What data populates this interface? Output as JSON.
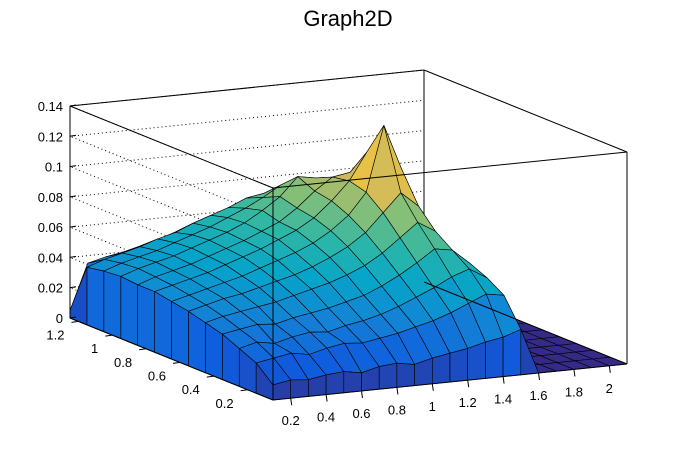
{
  "chart_data": {
    "type": "surface",
    "title": "Graph2D",
    "xlabel": "",
    "ylabel": "",
    "zlabel": "",
    "xlim": [
      0.1,
      2.1
    ],
    "ylim": [
      0.05,
      1.25
    ],
    "zlim": [
      0,
      0.14
    ],
    "x_ticks": [
      "0.2",
      "0.4",
      "0.6",
      "0.8",
      "1",
      "1.2",
      "1.4",
      "1.6",
      "1.8",
      "2"
    ],
    "y_ticks": [
      "0.2",
      "0.4",
      "0.6",
      "0.8",
      "1",
      "1.2"
    ],
    "z_ticks": [
      "0",
      "0.02",
      "0.04",
      "0.06",
      "0.08",
      "0.1",
      "0.12",
      "0.14"
    ],
    "grid": true,
    "palette": [
      "#352a87",
      "#0f5cdd",
      "#1481d6",
      "#06a4ca",
      "#2eb7a4",
      "#87bf77",
      "#d1bb59",
      "#fec832",
      "#f9fb0e"
    ],
    "surface_x": [
      0.1,
      0.2,
      0.3,
      0.4,
      0.5,
      0.6,
      0.7,
      0.8,
      0.9,
      1.0,
      1.1,
      1.2,
      1.3,
      1.4,
      1.5,
      1.6,
      1.7,
      1.8,
      1.9,
      2.0,
      2.1
    ],
    "surface_y": [
      0.05,
      0.15,
      0.25,
      0.35,
      0.45,
      0.55,
      0.65,
      0.75,
      0.85,
      0.95,
      1.05,
      1.15,
      1.25
    ],
    "surface_z": [
      [
        0.01,
        0.012,
        0.011,
        0.013,
        0.014,
        0.012,
        0.015,
        0.016,
        0.014,
        0.017,
        0.019,
        0.021,
        0.024,
        0.026,
        0.03,
        0.0,
        0.0,
        0.0,
        0.0,
        0.0,
        0.0
      ],
      [
        0.02,
        0.022,
        0.024,
        0.022,
        0.025,
        0.027,
        0.026,
        0.028,
        0.03,
        0.033,
        0.036,
        0.04,
        0.045,
        0.05,
        0.048,
        0.0,
        0.0,
        0.0,
        0.0,
        0.0,
        0.0
      ],
      [
        0.025,
        0.028,
        0.026,
        0.029,
        0.031,
        0.03,
        0.033,
        0.035,
        0.038,
        0.042,
        0.047,
        0.052,
        0.058,
        0.062,
        0.055,
        0.0,
        0.0,
        0.0,
        0.0,
        0.0,
        0.0
      ],
      [
        0.03,
        0.032,
        0.034,
        0.033,
        0.036,
        0.038,
        0.04,
        0.043,
        0.046,
        0.051,
        0.057,
        0.064,
        0.072,
        0.07,
        0.06,
        0.0,
        0.0,
        0.0,
        0.0,
        0.0,
        0.0
      ],
      [
        0.033,
        0.036,
        0.038,
        0.04,
        0.042,
        0.045,
        0.048,
        0.051,
        0.055,
        0.06,
        0.067,
        0.076,
        0.085,
        0.078,
        0.062,
        0.0,
        0.0,
        0.0,
        0.0,
        0.0,
        0.0
      ],
      [
        0.036,
        0.039,
        0.042,
        0.044,
        0.047,
        0.05,
        0.053,
        0.057,
        0.062,
        0.068,
        0.076,
        0.088,
        0.1,
        0.09,
        0.065,
        0.0,
        0.0,
        0.0,
        0.0,
        0.0,
        0.0
      ],
      [
        0.038,
        0.041,
        0.044,
        0.047,
        0.05,
        0.054,
        0.058,
        0.062,
        0.067,
        0.074,
        0.083,
        0.097,
        0.14,
        0.11,
        0.062,
        0.0,
        0.0,
        0.0,
        0.0,
        0.0,
        0.0
      ],
      [
        0.04,
        0.043,
        0.046,
        0.049,
        0.053,
        0.057,
        0.061,
        0.066,
        0.071,
        0.078,
        0.088,
        0.1,
        0.118,
        0.095,
        0.058,
        0.0,
        0.0,
        0.0,
        0.0,
        0.0,
        0.0
      ],
      [
        0.04,
        0.044,
        0.047,
        0.05,
        0.054,
        0.058,
        0.062,
        0.067,
        0.072,
        0.08,
        0.09,
        0.098,
        0.1,
        0.085,
        0.052,
        0.0,
        0.0,
        0.0,
        0.0,
        0.0,
        0.0
      ],
      [
        0.041,
        0.045,
        0.048,
        0.051,
        0.055,
        0.059,
        0.063,
        0.068,
        0.075,
        0.083,
        0.095,
        0.093,
        0.088,
        0.072,
        0.045,
        0.0,
        0.0,
        0.0,
        0.0,
        0.0,
        0.0
      ],
      [
        0.04,
        0.044,
        0.047,
        0.05,
        0.054,
        0.058,
        0.062,
        0.067,
        0.072,
        0.078,
        0.085,
        0.082,
        0.075,
        0.06,
        0.038,
        0.0,
        0.0,
        0.0,
        0.0,
        0.0,
        0.0
      ],
      [
        0.038,
        0.042,
        0.045,
        0.048,
        0.052,
        0.055,
        0.06,
        0.064,
        0.068,
        0.073,
        0.075,
        0.07,
        0.062,
        0.05,
        0.03,
        0.0,
        0.0,
        0.0,
        0.0,
        0.0,
        0.0
      ],
      [
        0.005,
        0.035,
        0.038,
        0.04,
        0.043,
        0.046,
        0.05,
        0.053,
        0.056,
        0.06,
        0.062,
        0.058,
        0.05,
        0.04,
        0.02,
        0.0,
        0.0,
        0.0,
        0.0,
        0.0,
        0.0
      ]
    ]
  }
}
